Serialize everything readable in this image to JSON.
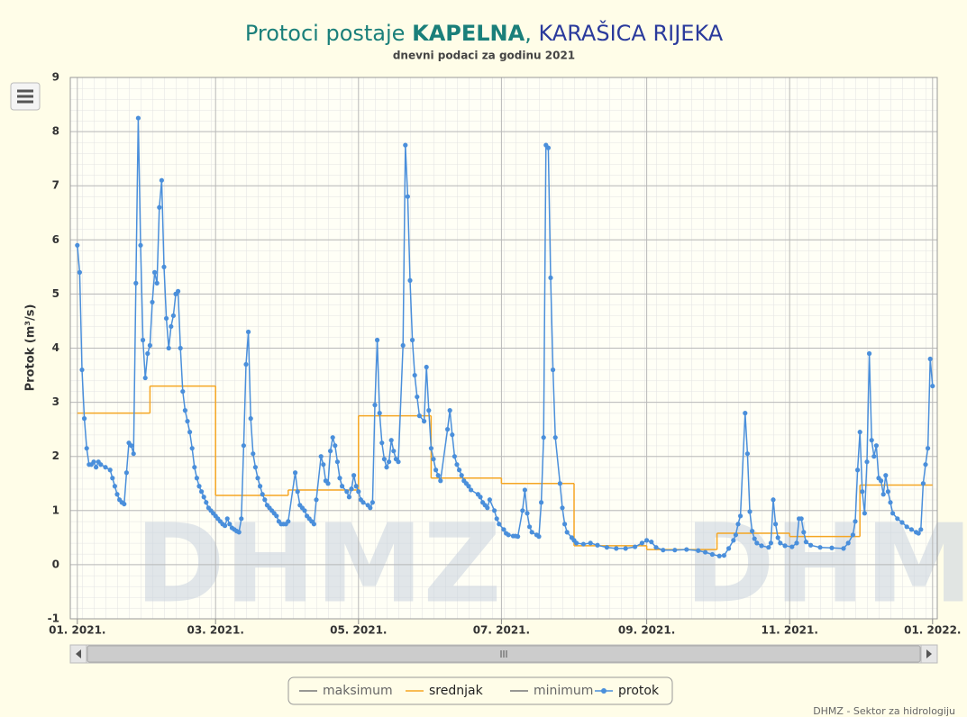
{
  "chart_data": {
    "type": "line",
    "title": {
      "prefix": "Protoci postaje",
      "station": "KAPELNA",
      "separator": ",",
      "river": "KARAŠICA RIJEKA"
    },
    "subtitle": "dnevni podaci za godinu 2021",
    "y_label": "Protok (m³/s)",
    "watermark": "DHMZ",
    "credit": "DHMZ - Sektor za hidrologiju",
    "xlim": [
      -3,
      367
    ],
    "xticks": [
      {
        "value": 0,
        "label": "01. 2021."
      },
      {
        "value": 59,
        "label": "03. 2021."
      },
      {
        "value": 120,
        "label": "05. 2021."
      },
      {
        "value": 181,
        "label": "07. 2021."
      },
      {
        "value": 243,
        "label": "09. 2021."
      },
      {
        "value": 304,
        "label": "11. 2021."
      },
      {
        "value": 365,
        "label": "01. 2022."
      }
    ],
    "ylim": [
      -1,
      9
    ],
    "yticks": [
      -1,
      0,
      1,
      2,
      3,
      4,
      5,
      6,
      7,
      8,
      9
    ],
    "grid": true,
    "legend": "bottom",
    "series": [
      {
        "name": "maksimum",
        "color": "#777777",
        "style": "line",
        "x": [],
        "values": []
      },
      {
        "name": "srednjak",
        "color": "#f5a623",
        "style": "step",
        "x": [
          0,
          31,
          59,
          90,
          120,
          151,
          181,
          212,
          243,
          273,
          304,
          334
        ],
        "values": [
          2.8,
          3.3,
          1.28,
          1.38,
          2.75,
          1.6,
          1.5,
          0.35,
          0.28,
          0.58,
          0.52,
          1.47
        ]
      },
      {
        "name": "minimum",
        "color": "#777777",
        "style": "line",
        "x": [],
        "values": []
      },
      {
        "name": "protok",
        "color": "#4a8fdb",
        "style": "line-markers",
        "x": [
          0,
          1,
          2,
          3,
          4,
          5,
          6,
          7,
          8,
          9,
          10,
          12,
          14,
          15,
          16,
          17,
          18,
          19,
          20,
          21,
          22,
          23,
          24,
          25,
          26,
          27,
          28,
          29,
          30,
          31,
          32,
          33,
          34,
          35,
          36,
          37,
          38,
          39,
          40,
          41,
          42,
          43,
          44,
          45,
          46,
          47,
          48,
          49,
          50,
          51,
          52,
          53,
          54,
          55,
          56,
          57,
          58,
          59,
          60,
          61,
          62,
          63,
          64,
          65,
          66,
          67,
          68,
          69,
          70,
          71,
          72,
          73,
          74,
          75,
          76,
          77,
          78,
          79,
          80,
          81,
          82,
          83,
          84,
          85,
          86,
          87,
          88,
          89,
          90,
          93,
          94,
          95,
          96,
          97,
          98,
          99,
          100,
          101,
          102,
          104,
          105,
          106,
          107,
          108,
          109,
          110,
          111,
          112,
          113,
          115,
          116,
          117,
          118,
          119,
          120,
          121,
          122,
          124,
          125,
          126,
          127,
          128,
          129,
          130,
          131,
          132,
          133,
          134,
          135,
          136,
          137,
          139,
          140,
          141,
          142,
          143,
          144,
          145,
          146,
          148,
          149,
          150,
          151,
          152,
          153,
          154,
          155,
          158,
          159,
          160,
          161,
          162,
          163,
          164,
          165,
          166,
          167,
          168,
          171,
          172,
          173,
          174,
          175,
          176,
          178,
          179,
          180,
          182,
          183,
          184,
          186,
          187,
          188,
          190,
          191,
          192,
          193,
          194,
          196,
          197,
          198,
          199,
          200,
          201,
          202,
          203,
          204,
          206,
          207,
          208,
          209,
          211,
          212,
          213,
          216,
          219,
          222,
          226,
          230,
          234,
          238,
          241,
          243,
          245,
          247,
          250,
          255,
          260,
          265,
          268,
          271,
          274,
          276,
          278,
          280,
          281,
          282,
          283,
          285,
          286,
          287,
          288,
          289,
          290,
          292,
          295,
          296,
          297,
          298,
          299,
          300,
          302,
          305,
          307,
          308,
          309,
          310,
          311,
          313,
          317,
          322,
          327,
          329,
          331,
          332,
          333,
          334,
          335,
          336,
          337,
          338,
          339,
          340,
          341,
          342,
          343,
          344,
          345,
          346,
          347,
          348,
          350,
          352,
          354,
          356,
          358,
          359,
          360,
          361,
          362,
          363,
          364,
          365
        ],
        "values": [
          5.9,
          5.4,
          3.6,
          2.7,
          2.15,
          1.85,
          1.85,
          1.9,
          1.8,
          1.9,
          1.85,
          1.8,
          1.75,
          1.6,
          1.45,
          1.3,
          1.2,
          1.15,
          1.12,
          1.7,
          2.25,
          2.2,
          2.05,
          5.2,
          8.25,
          5.9,
          4.15,
          3.45,
          3.9,
          4.05,
          4.85,
          5.4,
          5.2,
          6.6,
          7.1,
          5.5,
          4.55,
          4.0,
          4.4,
          4.6,
          5.0,
          5.05,
          4.0,
          3.2,
          2.85,
          2.65,
          2.45,
          2.15,
          1.8,
          1.6,
          1.45,
          1.35,
          1.25,
          1.15,
          1.05,
          1.0,
          0.95,
          0.9,
          0.85,
          0.8,
          0.75,
          0.72,
          0.85,
          0.75,
          0.68,
          0.65,
          0.62,
          0.6,
          0.85,
          2.2,
          3.7,
          4.3,
          2.7,
          2.05,
          1.8,
          1.6,
          1.45,
          1.3,
          1.2,
          1.1,
          1.05,
          1.0,
          0.95,
          0.9,
          0.8,
          0.75,
          0.75,
          0.75,
          0.8,
          1.7,
          1.35,
          1.1,
          1.05,
          1.0,
          0.9,
          0.85,
          0.8,
          0.75,
          1.2,
          2.0,
          1.85,
          1.55,
          1.5,
          2.1,
          2.35,
          2.2,
          1.9,
          1.6,
          1.45,
          1.35,
          1.25,
          1.4,
          1.65,
          1.45,
          1.35,
          1.2,
          1.15,
          1.1,
          1.05,
          1.15,
          2.95,
          4.15,
          2.8,
          2.25,
          1.95,
          1.8,
          1.9,
          2.3,
          2.1,
          1.95,
          1.9,
          4.05,
          7.75,
          6.8,
          5.25,
          4.15,
          3.5,
          3.1,
          2.75,
          2.65,
          3.65,
          2.85,
          2.15,
          1.95,
          1.75,
          1.65,
          1.55,
          2.5,
          2.85,
          2.4,
          2.0,
          1.85,
          1.75,
          1.65,
          1.55,
          1.5,
          1.45,
          1.38,
          1.3,
          1.25,
          1.15,
          1.1,
          1.05,
          1.2,
          1.0,
          0.85,
          0.75,
          0.65,
          0.58,
          0.55,
          0.53,
          0.53,
          0.52,
          1.0,
          1.38,
          0.95,
          0.7,
          0.6,
          0.55,
          0.52,
          1.15,
          2.35,
          7.75,
          7.7,
          5.3,
          3.6,
          2.35,
          1.5,
          1.05,
          0.75,
          0.6,
          0.5,
          0.45,
          0.4,
          0.38,
          0.4,
          0.36,
          0.32,
          0.3,
          0.3,
          0.33,
          0.4,
          0.45,
          0.42,
          0.32,
          0.27,
          0.27,
          0.28,
          0.26,
          0.23,
          0.19,
          0.16,
          0.17,
          0.3,
          0.45,
          0.55,
          0.75,
          0.9,
          2.8,
          2.05,
          0.98,
          0.62,
          0.48,
          0.4,
          0.35,
          0.32,
          0.4,
          1.2,
          0.75,
          0.5,
          0.4,
          0.35,
          0.33,
          0.4,
          0.85,
          0.85,
          0.6,
          0.42,
          0.36,
          0.32,
          0.31,
          0.3,
          0.4,
          0.55,
          0.8,
          1.75,
          2.45,
          1.35,
          0.95,
          1.9,
          3.9,
          2.3,
          2.0,
          2.2,
          1.6,
          1.55,
          1.3,
          1.65,
          1.35,
          1.15,
          0.95,
          0.85,
          0.78,
          0.7,
          0.65,
          0.6,
          0.58,
          0.65,
          1.5,
          1.85,
          2.15,
          3.8,
          3.3
        ]
      }
    ]
  }
}
